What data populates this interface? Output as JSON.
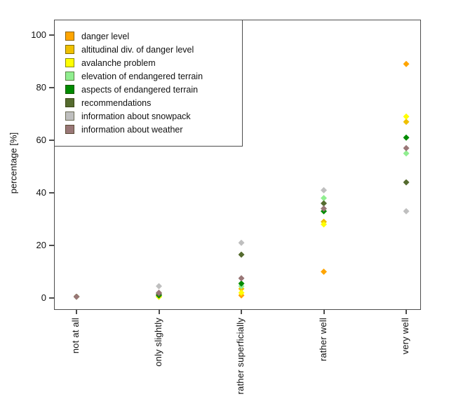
{
  "figure": {
    "background": "#ffffff",
    "frame_color": "#4d4d4d"
  },
  "chart_data": {
    "type": "scatter",
    "marker": "diamond",
    "title": "",
    "xlabel": "",
    "ylabel": "percentage [%]",
    "ylim": [
      0,
      100
    ],
    "yticks": [
      0,
      20,
      40,
      60,
      80,
      100
    ],
    "grid": false,
    "legend_position": "top-left",
    "categories": [
      "not at all",
      "only slightly",
      "rather superficially",
      "rather well",
      "very well"
    ],
    "series": [
      {
        "name": "danger level",
        "color": "#FFA500",
        "values": [
          0.5,
          0.5,
          1,
          10,
          89
        ]
      },
      {
        "name": "altitudinal div. of danger level",
        "color": "#EFC000",
        "values": [
          0.5,
          0.5,
          3.5,
          29,
          67
        ]
      },
      {
        "name": "avalanche problem",
        "color": "#FFFF00",
        "values": [
          0.5,
          0.5,
          2,
          28,
          69
        ]
      },
      {
        "name": "elevation of endangered terrain",
        "color": "#90EE90",
        "values": [
          0.5,
          1,
          4.5,
          38,
          55
        ]
      },
      {
        "name": "aspects of endangered terrain",
        "color": "#008B00",
        "values": [
          0.5,
          1,
          5.5,
          33,
          61
        ]
      },
      {
        "name": "recommendations",
        "color": "#556B2F",
        "values": [
          0.5,
          1.5,
          16.5,
          36,
          44
        ]
      },
      {
        "name": "information about snowpack",
        "color": "#BFBFBF",
        "values": [
          0.5,
          4.5,
          21,
          41,
          33
        ]
      },
      {
        "name": "information about weather",
        "color": "#997777",
        "values": [
          0.5,
          2,
          7.5,
          34,
          57
        ]
      }
    ]
  }
}
